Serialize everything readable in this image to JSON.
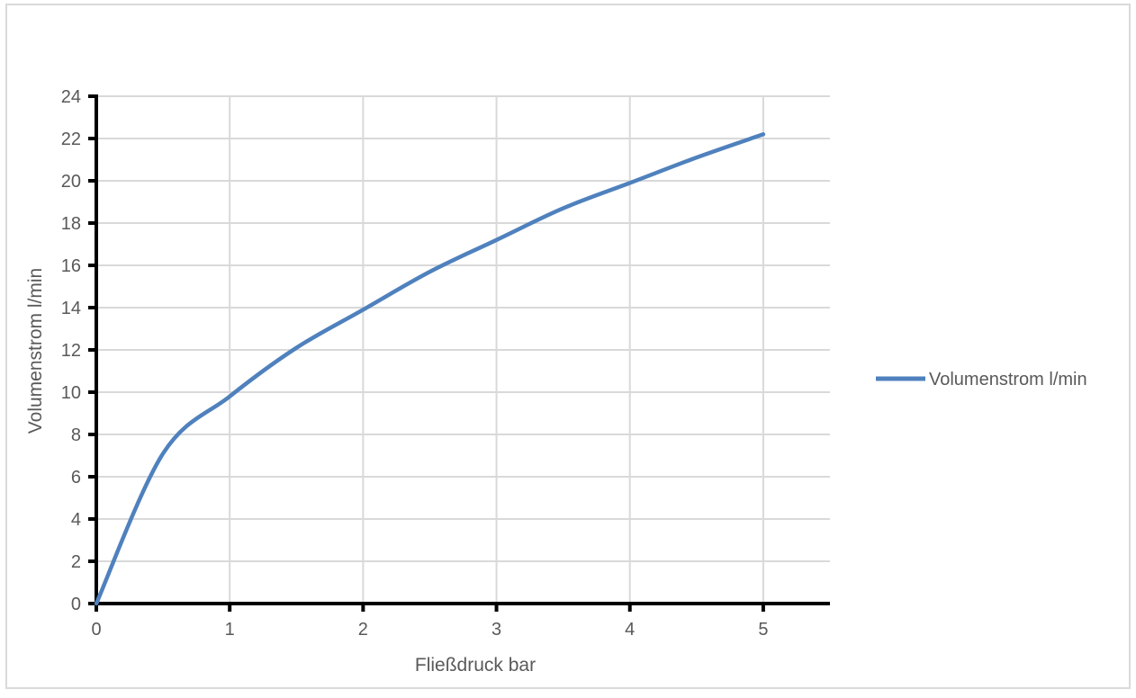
{
  "chart_data": {
    "type": "line",
    "xlabel": "Fließdruck bar",
    "ylabel": "Volumenstrom l/min",
    "x": [
      0,
      0.5,
      1,
      1.5,
      2,
      2.5,
      3,
      3.5,
      4,
      4.5,
      5
    ],
    "series": [
      {
        "name": "Volumenstrom l/min",
        "values": [
          0,
          7.1,
          9.8,
          12.1,
          13.9,
          15.7,
          17.2,
          18.7,
          19.9,
          21.1,
          22.2
        ]
      }
    ],
    "xlim": [
      0,
      5.5
    ],
    "ylim": [
      0,
      24
    ],
    "x_ticks": [
      0,
      1,
      2,
      3,
      4,
      5
    ],
    "y_ticks": [
      0,
      2,
      4,
      6,
      8,
      10,
      12,
      14,
      16,
      18,
      20,
      22,
      24
    ],
    "grid": true,
    "legend_position": "right",
    "legend": [
      "Volumenstrom l/min"
    ],
    "colors": {
      "series_line": "#4F81BD",
      "gridline": "#D9D9D9",
      "axis_line": "#000000",
      "label_text": "#595959",
      "frame_border": "#D9D9D9"
    }
  }
}
